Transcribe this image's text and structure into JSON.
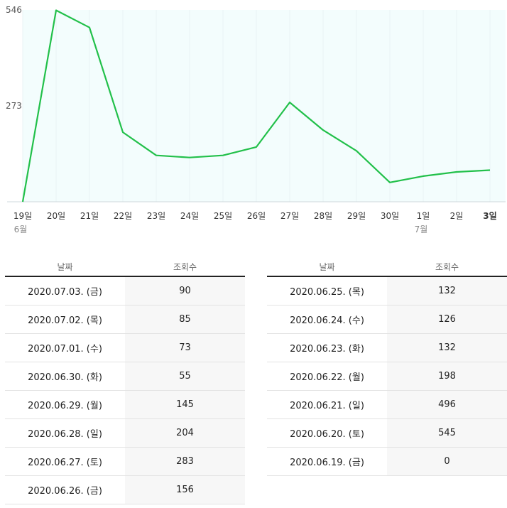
{
  "chart_data": {
    "type": "line",
    "x": [
      "19일",
      "20일",
      "21일",
      "22일",
      "23일",
      "24일",
      "25일",
      "26일",
      "27일",
      "28일",
      "29일",
      "30일",
      "1일",
      "2일",
      "3일"
    ],
    "month_labels": [
      {
        "index": 0,
        "label": "6월"
      },
      {
        "index": 12,
        "label": "7월"
      }
    ],
    "series": [
      {
        "values": [
          0,
          545,
          496,
          198,
          132,
          126,
          132,
          156,
          283,
          204,
          145,
          55,
          73,
          85,
          90
        ]
      }
    ],
    "yticks": [
      273,
      546
    ],
    "ylim": [
      0,
      546
    ],
    "line_color": "#22c04a",
    "plot_background": "#f3fdfd",
    "grid": false
  },
  "table": {
    "headers": {
      "date": "날짜",
      "views": "조회수"
    },
    "left_rows": [
      {
        "date": "2020.07.03. (금)",
        "views": "90"
      },
      {
        "date": "2020.07.02. (목)",
        "views": "85"
      },
      {
        "date": "2020.07.01. (수)",
        "views": "73"
      },
      {
        "date": "2020.06.30. (화)",
        "views": "55"
      },
      {
        "date": "2020.06.29. (월)",
        "views": "145"
      },
      {
        "date": "2020.06.28. (일)",
        "views": "204"
      },
      {
        "date": "2020.06.27. (토)",
        "views": "283"
      },
      {
        "date": "2020.06.26. (금)",
        "views": "156"
      }
    ],
    "right_rows": [
      {
        "date": "2020.06.25. (목)",
        "views": "132"
      },
      {
        "date": "2020.06.24. (수)",
        "views": "126"
      },
      {
        "date": "2020.06.23. (화)",
        "views": "132"
      },
      {
        "date": "2020.06.22. (월)",
        "views": "198"
      },
      {
        "date": "2020.06.21. (일)",
        "views": "496"
      },
      {
        "date": "2020.06.20. (토)",
        "views": "545"
      },
      {
        "date": "2020.06.19. (금)",
        "views": "0"
      }
    ]
  }
}
